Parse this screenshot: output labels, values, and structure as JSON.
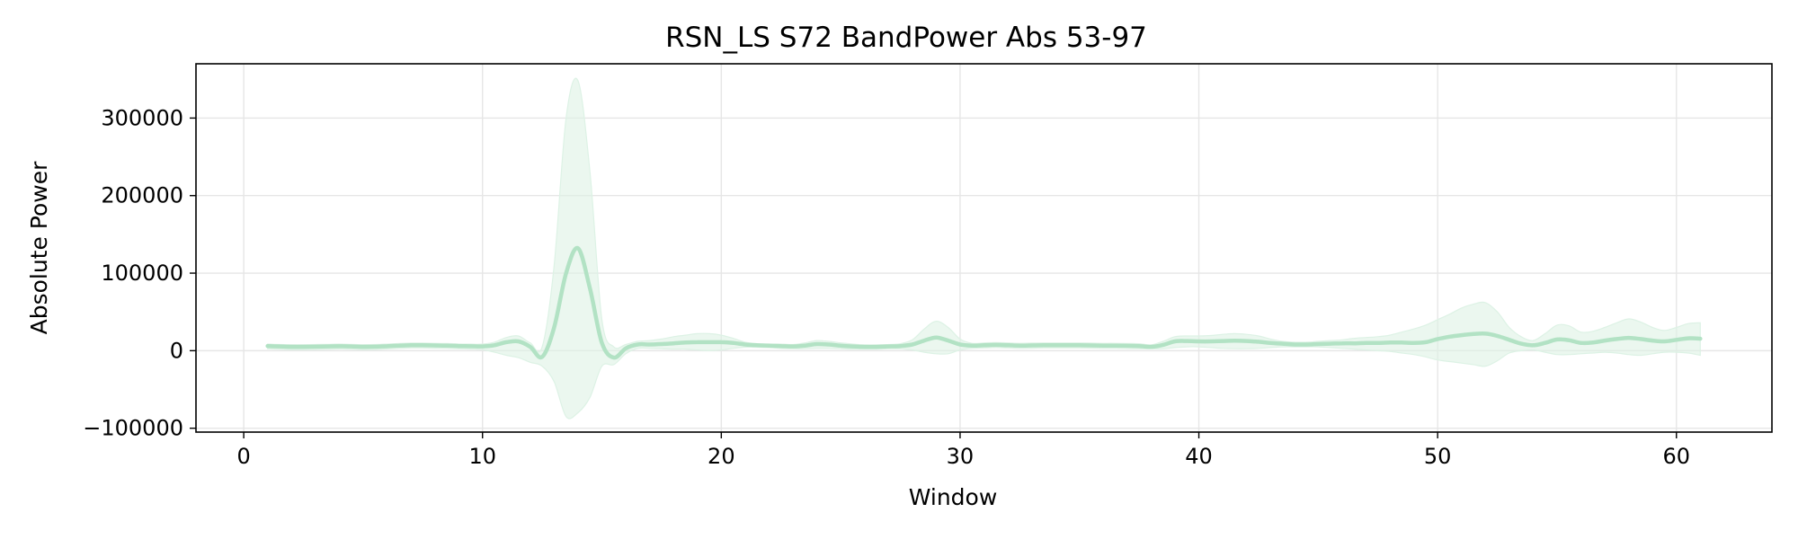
{
  "chart_data": {
    "type": "line",
    "title": "RSN_LS S72 BandPower Abs 53-97",
    "xlabel": "Window",
    "ylabel": "Absolute Power",
    "xlim": [
      -2,
      64
    ],
    "ylim": [
      -105000,
      370000
    ],
    "xticks": [
      0,
      10,
      20,
      30,
      40,
      50,
      60
    ],
    "xtick_labels": [
      "0",
      "10",
      "20",
      "30",
      "40",
      "50",
      "60"
    ],
    "yticks": [
      -100000,
      0,
      100000,
      200000,
      300000
    ],
    "ytick_labels": [
      "−100000",
      "0",
      "100000",
      "200000",
      "300000"
    ],
    "grid": true,
    "color": "#b2e2c4",
    "band_color": "#ddf2e5",
    "series": [
      {
        "x": [
          1,
          1.5,
          2,
          2.5,
          3,
          3.5,
          4,
          4.5,
          5,
          5.5,
          6,
          6.5,
          7,
          7.5,
          8,
          8.5,
          9,
          9.5,
          10,
          10.5,
          11,
          11.5,
          12,
          12.5,
          13,
          13.5,
          14,
          14.5,
          15,
          15.5,
          16,
          16.5,
          17,
          17.5,
          18,
          18.5,
          19,
          19.5,
          20,
          20.5,
          21,
          21.5,
          22,
          22.5,
          23,
          23.5,
          24,
          24.5,
          25,
          25.5,
          26,
          26.5,
          27,
          27.5,
          28,
          28.5,
          29,
          29.5,
          30,
          30.5,
          31,
          31.5,
          32,
          32.5,
          33,
          33.5,
          34,
          34.5,
          35,
          35.5,
          36,
          36.5,
          37,
          37.5,
          38,
          38.5,
          39,
          39.5,
          40,
          40.5,
          41,
          41.5,
          42,
          42.5,
          43,
          43.5,
          44,
          44.5,
          45,
          45.5,
          46,
          46.5,
          47,
          47.5,
          48,
          48.5,
          49,
          49.5,
          50,
          50.5,
          51,
          51.5,
          52,
          52.5,
          53,
          53.5,
          54,
          54.5,
          55,
          55.5,
          56,
          56.5,
          57,
          57.5,
          58,
          58.5,
          59,
          59.5,
          60,
          60.5,
          61
        ],
        "mean": [
          6000,
          5500,
          5000,
          5000,
          5200,
          5500,
          5800,
          5500,
          5000,
          5200,
          5800,
          6500,
          7000,
          7000,
          6800,
          6500,
          6000,
          5800,
          5500,
          7000,
          11000,
          12000,
          5000,
          -8000,
          30000,
          100000,
          132000,
          80000,
          10000,
          -9000,
          3000,
          8000,
          8000,
          8500,
          9500,
          10500,
          11000,
          11000,
          11000,
          10000,
          8000,
          7000,
          6500,
          6000,
          5500,
          6500,
          8500,
          8000,
          6500,
          5500,
          5000,
          5000,
          5500,
          6000,
          8000,
          13000,
          17000,
          13000,
          8000,
          6500,
          7000,
          7500,
          7000,
          6500,
          6800,
          7000,
          7000,
          7000,
          7000,
          6800,
          6500,
          6500,
          6300,
          6000,
          5000,
          7500,
          12000,
          12500,
          12000,
          12000,
          12500,
          12800,
          12500,
          11500,
          10000,
          9000,
          8000,
          8000,
          8500,
          9000,
          9500,
          9500,
          10000,
          10000,
          10500,
          10500,
          10000,
          11000,
          15000,
          18000,
          20000,
          21500,
          22000,
          19000,
          14000,
          9000,
          7000,
          10000,
          14500,
          13500,
          10000,
          10500,
          13000,
          15000,
          16500,
          15000,
          13000,
          12000,
          14000,
          16000,
          15500
        ],
        "upper": [
          8500,
          8000,
          7800,
          7800,
          8000,
          8200,
          8500,
          8200,
          7800,
          8000,
          8500,
          9200,
          9800,
          9800,
          9500,
          9200,
          8800,
          8500,
          8500,
          11000,
          17000,
          19000,
          10000,
          5000,
          110000,
          300000,
          348000,
          230000,
          40000,
          5000,
          8000,
          12000,
          13000,
          15000,
          18000,
          20000,
          22000,
          22000,
          20000,
          16000,
          11000,
          9000,
          8500,
          8500,
          8000,
          10000,
          13000,
          12000,
          10000,
          8500,
          7500,
          7500,
          8000,
          9000,
          14000,
          28000,
          38000,
          30000,
          15000,
          9500,
          10000,
          10500,
          10000,
          9500,
          9800,
          10000,
          10000,
          10000,
          10000,
          9800,
          9500,
          9500,
          9300,
          9000,
          7500,
          12000,
          18000,
          19000,
          19000,
          19500,
          21000,
          22000,
          21000,
          19000,
          15000,
          12000,
          11000,
          11000,
          12000,
          13000,
          14000,
          16000,
          17000,
          18000,
          20000,
          24000,
          28000,
          33000,
          40000,
          47000,
          55000,
          60000,
          62000,
          50000,
          30000,
          18000,
          13000,
          22000,
          33000,
          32000,
          24000,
          25000,
          30000,
          36000,
          41000,
          37000,
          30000,
          26000,
          30000,
          35000,
          36000
        ],
        "lower": [
          2500,
          2000,
          1500,
          1500,
          1700,
          2000,
          2300,
          2000,
          1500,
          1700,
          2300,
          3000,
          3500,
          3500,
          3200,
          3000,
          2500,
          2200,
          1500,
          -2000,
          -6000,
          -9000,
          -15000,
          -20000,
          -40000,
          -85000,
          -80000,
          -60000,
          -20000,
          -18000,
          -4000,
          3000,
          3000,
          2500,
          2000,
          2000,
          1000,
          0,
          1000,
          3000,
          4500,
          4500,
          4000,
          3000,
          2500,
          2500,
          3000,
          3000,
          2500,
          2000,
          2000,
          2000,
          2500,
          2500,
          1000,
          -2000,
          -4000,
          -4000,
          1000,
          3000,
          3500,
          4000,
          3500,
          3000,
          3200,
          3500,
          3500,
          3500,
          3500,
          3300,
          3000,
          3000,
          2800,
          2500,
          2500,
          2500,
          4000,
          5000,
          5000,
          4000,
          3000,
          2500,
          2500,
          3000,
          4000,
          5000,
          5000,
          5000,
          5000,
          4000,
          3000,
          2000,
          1000,
          0,
          -1000,
          -3000,
          -5000,
          -8000,
          -12000,
          -14000,
          -16000,
          -18000,
          -20000,
          -13000,
          -3000,
          0,
          1000,
          -2000,
          -5000,
          -5000,
          -4000,
          -3000,
          -2000,
          -3000,
          -5000,
          -6000,
          -4000,
          -2000,
          -2000,
          -3000,
          -6000
        ]
      }
    ]
  }
}
